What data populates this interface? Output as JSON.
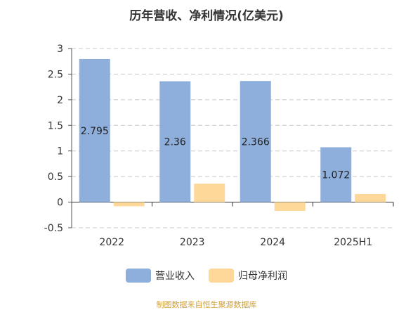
{
  "chart_data": {
    "type": "bar",
    "title": "历年营收、净利情况(亿美元)",
    "categories": [
      "2022",
      "2023",
      "2024",
      "2025H1"
    ],
    "series": [
      {
        "name": "营业收入",
        "values": [
          2.795,
          2.36,
          2.366,
          1.072
        ],
        "color": "#8eaedc",
        "labels": [
          "2.795",
          "2.36",
          "2.366",
          "1.072"
        ]
      },
      {
        "name": "归母净利润",
        "values": [
          -0.08,
          0.36,
          -0.17,
          0.16
        ],
        "color": "#fdd899"
      }
    ],
    "ylim": [
      -0.5,
      3
    ],
    "yticks": [
      -0.5,
      0,
      0.5,
      1,
      1.5,
      2,
      2.5,
      3
    ],
    "ytick_labels": [
      "-0.5",
      "0",
      "0.5",
      "1",
      "1.5",
      "2",
      "2.5",
      "3"
    ],
    "grid": true,
    "legend_position": "bottom",
    "xlabel": "",
    "ylabel": ""
  },
  "source_note": "制图数据来自恒生聚源数据库"
}
